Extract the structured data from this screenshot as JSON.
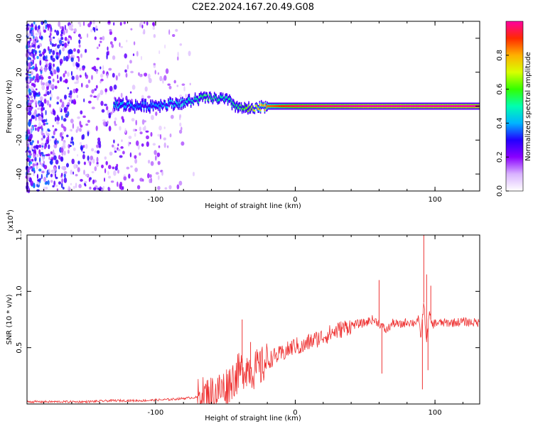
{
  "title": "C2E2.2024.167.20.49.G08",
  "chart_data": [
    {
      "type": "heatmap",
      "xlabel": "Height of straight line (km)",
      "ylabel": "Frequency (Hz)",
      "xlim": [
        -192,
        132
      ],
      "ylim": [
        -50,
        50
      ],
      "xticks": [
        -100,
        0,
        100
      ],
      "xtick_labels": [
        "-100",
        "0",
        "100"
      ],
      "yticks": [
        -40,
        -20,
        0,
        20,
        40
      ],
      "ytick_labels": [
        "-40",
        "-20",
        "0",
        "20",
        "40"
      ],
      "colorbar": {
        "label": "Normalized spectral amplitude",
        "range": [
          0,
          1
        ],
        "ticks": [
          0.0,
          0.2,
          0.4,
          0.6,
          0.8
        ],
        "tick_labels": [
          "0.0",
          "0.2",
          "0.4",
          "0.6",
          "0.8"
        ],
        "colormap": [
          "#ffffff",
          "#d9b3ff",
          "#8a00ff",
          "#2200ff",
          "#00b4ff",
          "#00ffb0",
          "#33ff00",
          "#d8ff00",
          "#ffb000",
          "#ff2a00",
          "#ff00a0"
        ]
      },
      "ridge": [
        {
          "x": -130,
          "y": 1,
          "level": 0.45
        },
        {
          "x": -110,
          "y": 0,
          "level": 0.35
        },
        {
          "x": -80,
          "y": 2,
          "level": 0.45
        },
        {
          "x": -65,
          "y": 5,
          "level": 0.55
        },
        {
          "x": -50,
          "y": 4,
          "level": 0.5
        },
        {
          "x": -40,
          "y": -1,
          "level": 0.55
        },
        {
          "x": -30,
          "y": -2,
          "level": 0.7
        },
        {
          "x": -20,
          "y": 0,
          "level": 0.85
        },
        {
          "x": 0,
          "y": 0,
          "level": 0.95
        },
        {
          "x": 50,
          "y": 0,
          "level": 1.0
        },
        {
          "x": 100,
          "y": 0,
          "level": 1.0
        },
        {
          "x": 132,
          "y": 0,
          "level": 1.0
        }
      ]
    },
    {
      "type": "line",
      "xlabel": "Height of straight line (km)",
      "ylabel": "SNR (10 * v/v)",
      "yscale_label": "(x10",
      "yscale_exp": "4",
      "xlim": [
        -192,
        132
      ],
      "ylim": [
        0,
        1.5
      ],
      "xticks": [
        -100,
        0,
        100
      ],
      "xtick_labels": [
        "-100",
        "0",
        "100"
      ],
      "yticks": [
        0.5,
        1.0,
        1.5
      ],
      "ytick_labels": [
        "0.5",
        "1.0",
        "1.5"
      ],
      "color": "#ee3333",
      "x": [
        -192,
        -170,
        -150,
        -130,
        -110,
        -90,
        -80,
        -70,
        -60,
        -50,
        -45,
        -40,
        -35,
        -30,
        -25,
        -20,
        -15,
        -10,
        -5,
        0,
        5,
        10,
        20,
        30,
        40,
        50,
        55,
        60,
        65,
        70,
        75,
        80,
        85,
        88,
        90,
        92,
        94,
        96,
        98,
        100,
        110,
        120,
        132
      ],
      "y": [
        0.02,
        0.02,
        0.02,
        0.03,
        0.03,
        0.04,
        0.05,
        0.06,
        0.08,
        0.15,
        0.22,
        0.28,
        0.33,
        0.3,
        0.32,
        0.38,
        0.42,
        0.44,
        0.48,
        0.52,
        0.5,
        0.55,
        0.6,
        0.65,
        0.7,
        0.72,
        0.75,
        0.72,
        0.65,
        0.72,
        0.7,
        0.73,
        0.72,
        0.75,
        0.6,
        0.9,
        0.55,
        0.8,
        0.7,
        0.72,
        0.72,
        0.73,
        0.72
      ],
      "spikes": [
        {
          "x": -38,
          "y": 0.75
        },
        {
          "x": -32,
          "y": 0.55
        },
        {
          "x": 60,
          "y": 1.1
        },
        {
          "x": 62,
          "y": 0.27
        },
        {
          "x": 92,
          "y": 1.5
        },
        {
          "x": 91,
          "y": 0.13
        },
        {
          "x": 94,
          "y": 1.15
        },
        {
          "x": 97,
          "y": 1.05
        },
        {
          "x": 95,
          "y": 0.3
        }
      ]
    }
  ]
}
